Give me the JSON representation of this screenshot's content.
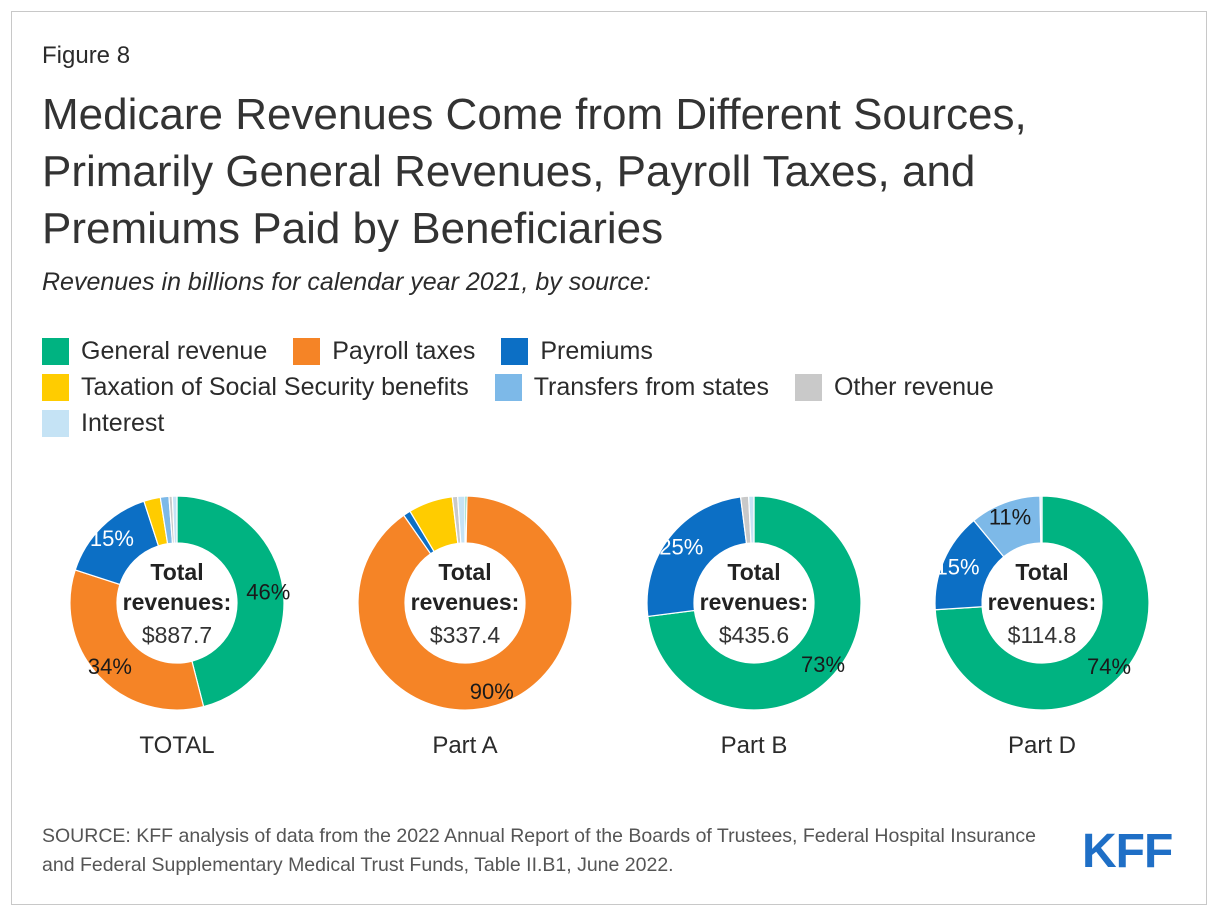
{
  "figure_label": "Figure 8",
  "title": "Medicare Revenues Come from Different Sources, Primarily General Revenues, Payroll Taxes, and Premiums Paid by Beneficiaries",
  "subtitle": "Revenues in billions for calendar year 2021, by source:",
  "legend": [
    {
      "label": "General revenue",
      "color": "#00b381"
    },
    {
      "label": "Payroll taxes",
      "color": "#f58426"
    },
    {
      "label": "Premiums",
      "color": "#0c6fc5"
    },
    {
      "label": "Taxation of Social Security benefits",
      "color": "#ffcc00"
    },
    {
      "label": "Transfers from states",
      "color": "#7db9e8"
    },
    {
      "label": "Other revenue",
      "color": "#c9c9c9"
    },
    {
      "label": "Interest",
      "color": "#c5e3f5"
    }
  ],
  "chart_data": [
    {
      "type": "pie",
      "title": "TOTAL",
      "center_label": "Total revenues:",
      "center_value": "$887.7",
      "categories": [
        "General revenue",
        "Payroll taxes",
        "Premiums",
        "Taxation of Social Security benefits",
        "Transfers from states",
        "Other revenue",
        "Interest"
      ],
      "values": [
        46,
        34,
        15,
        2.5,
        1.3,
        0.5,
        0.7
      ],
      "labels": [
        "46%",
        "34%",
        "15%",
        "",
        "",
        "",
        ""
      ]
    },
    {
      "type": "pie",
      "title": "Part A",
      "center_label": "Total revenues:",
      "center_value": "$337.4",
      "categories": [
        "General revenue",
        "Payroll taxes",
        "Premiums",
        "Taxation of Social Security benefits",
        "Transfers from states",
        "Other revenue",
        "Interest"
      ],
      "values": [
        0.3,
        90,
        1.1,
        6.7,
        0,
        0.8,
        1.1
      ],
      "labels": [
        "",
        "90%",
        "",
        "",
        "",
        "",
        ""
      ]
    },
    {
      "type": "pie",
      "title": "Part B",
      "center_label": "Total revenues:",
      "center_value": "$435.6",
      "categories": [
        "General revenue",
        "Payroll taxes",
        "Premiums",
        "Taxation of Social Security benefits",
        "Transfers from states",
        "Other revenue",
        "Interest"
      ],
      "values": [
        73,
        0,
        25,
        0,
        0,
        1.2,
        0.8
      ],
      "labels": [
        "73%",
        "",
        "25%",
        "",
        "",
        "",
        ""
      ]
    },
    {
      "type": "pie",
      "title": "Part D",
      "center_label": "Total revenues:",
      "center_value": "$114.8",
      "categories": [
        "General revenue",
        "Payroll taxes",
        "Premiums",
        "Taxation of Social Security benefits",
        "Transfers from states",
        "Other revenue",
        "Interest"
      ],
      "values": [
        74,
        0,
        15,
        0,
        10.7,
        0,
        0.3
      ],
      "labels": [
        "74%",
        "",
        "15%",
        "",
        "11%",
        "",
        ""
      ]
    }
  ],
  "source": "SOURCE: KFF analysis of data from the 2022 Annual Report of the Boards of Trustees, Federal Hospital Insurance and Federal Supplementary Medical Trust Funds, Table II.B1, June 2022.",
  "logo_text": "KFF"
}
